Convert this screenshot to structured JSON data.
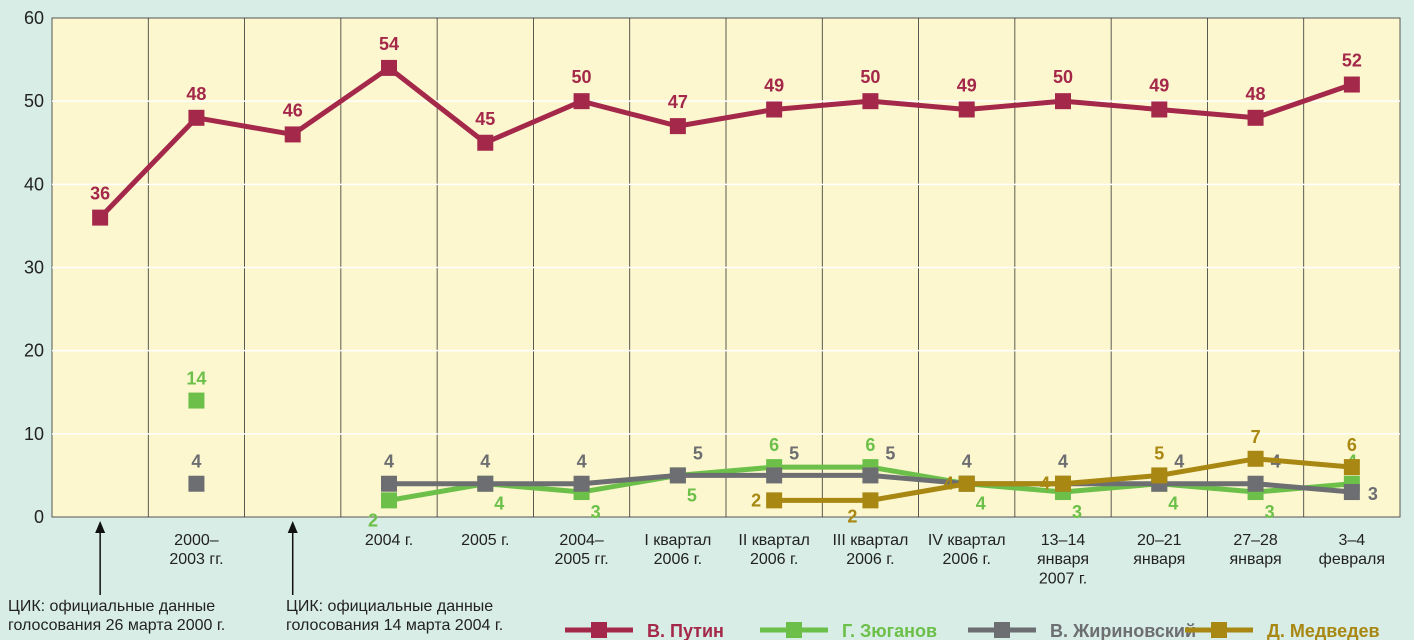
{
  "chart_data": {
    "type": "line",
    "categories": [
      null,
      "2000–\n2003 гг.",
      null,
      "2004 г.",
      "2005 г.",
      "2004–\n2005 гг.",
      "I квартал\n2006 г.",
      "II квартал\n2006 г.",
      "III квартал\n2006 г.",
      "IV квартал\n2006 г.",
      "13–14\nянваря\n2007 г.",
      "20–21\nянваря",
      "27–28\nянваря",
      "3–4\nфевраля"
    ],
    "series": [
      {
        "name": "В. Путин",
        "color": "#a3284a",
        "values": [
          36,
          48,
          46,
          54,
          45,
          50,
          47,
          49,
          50,
          49,
          50,
          49,
          48,
          52
        ]
      },
      {
        "name": "Г. Зюганов",
        "color": "#6cc04a",
        "values": [
          null,
          14,
          null,
          2,
          4,
          3,
          5,
          6,
          6,
          4,
          3,
          4,
          3,
          4
        ]
      },
      {
        "name": "В. Жириновский",
        "color": "#6d6e71",
        "values": [
          null,
          4,
          null,
          4,
          4,
          4,
          5,
          5,
          5,
          4,
          4,
          4,
          4,
          3
        ]
      },
      {
        "name": "Д. Медведев",
        "color": "#a88712",
        "values": [
          null,
          null,
          null,
          null,
          null,
          null,
          null,
          2,
          2,
          4,
          4,
          5,
          7,
          6
        ]
      }
    ],
    "ylim": [
      0,
      60
    ],
    "yticks": [
      0,
      10,
      20,
      30,
      40,
      50,
      60
    ],
    "grid": true,
    "annotations": [
      "ЦИК: официальные данные\nголосования 26 марта 2000 г.",
      "ЦИК: официальные данные\nголосования 14 марта 2004 г."
    ]
  }
}
